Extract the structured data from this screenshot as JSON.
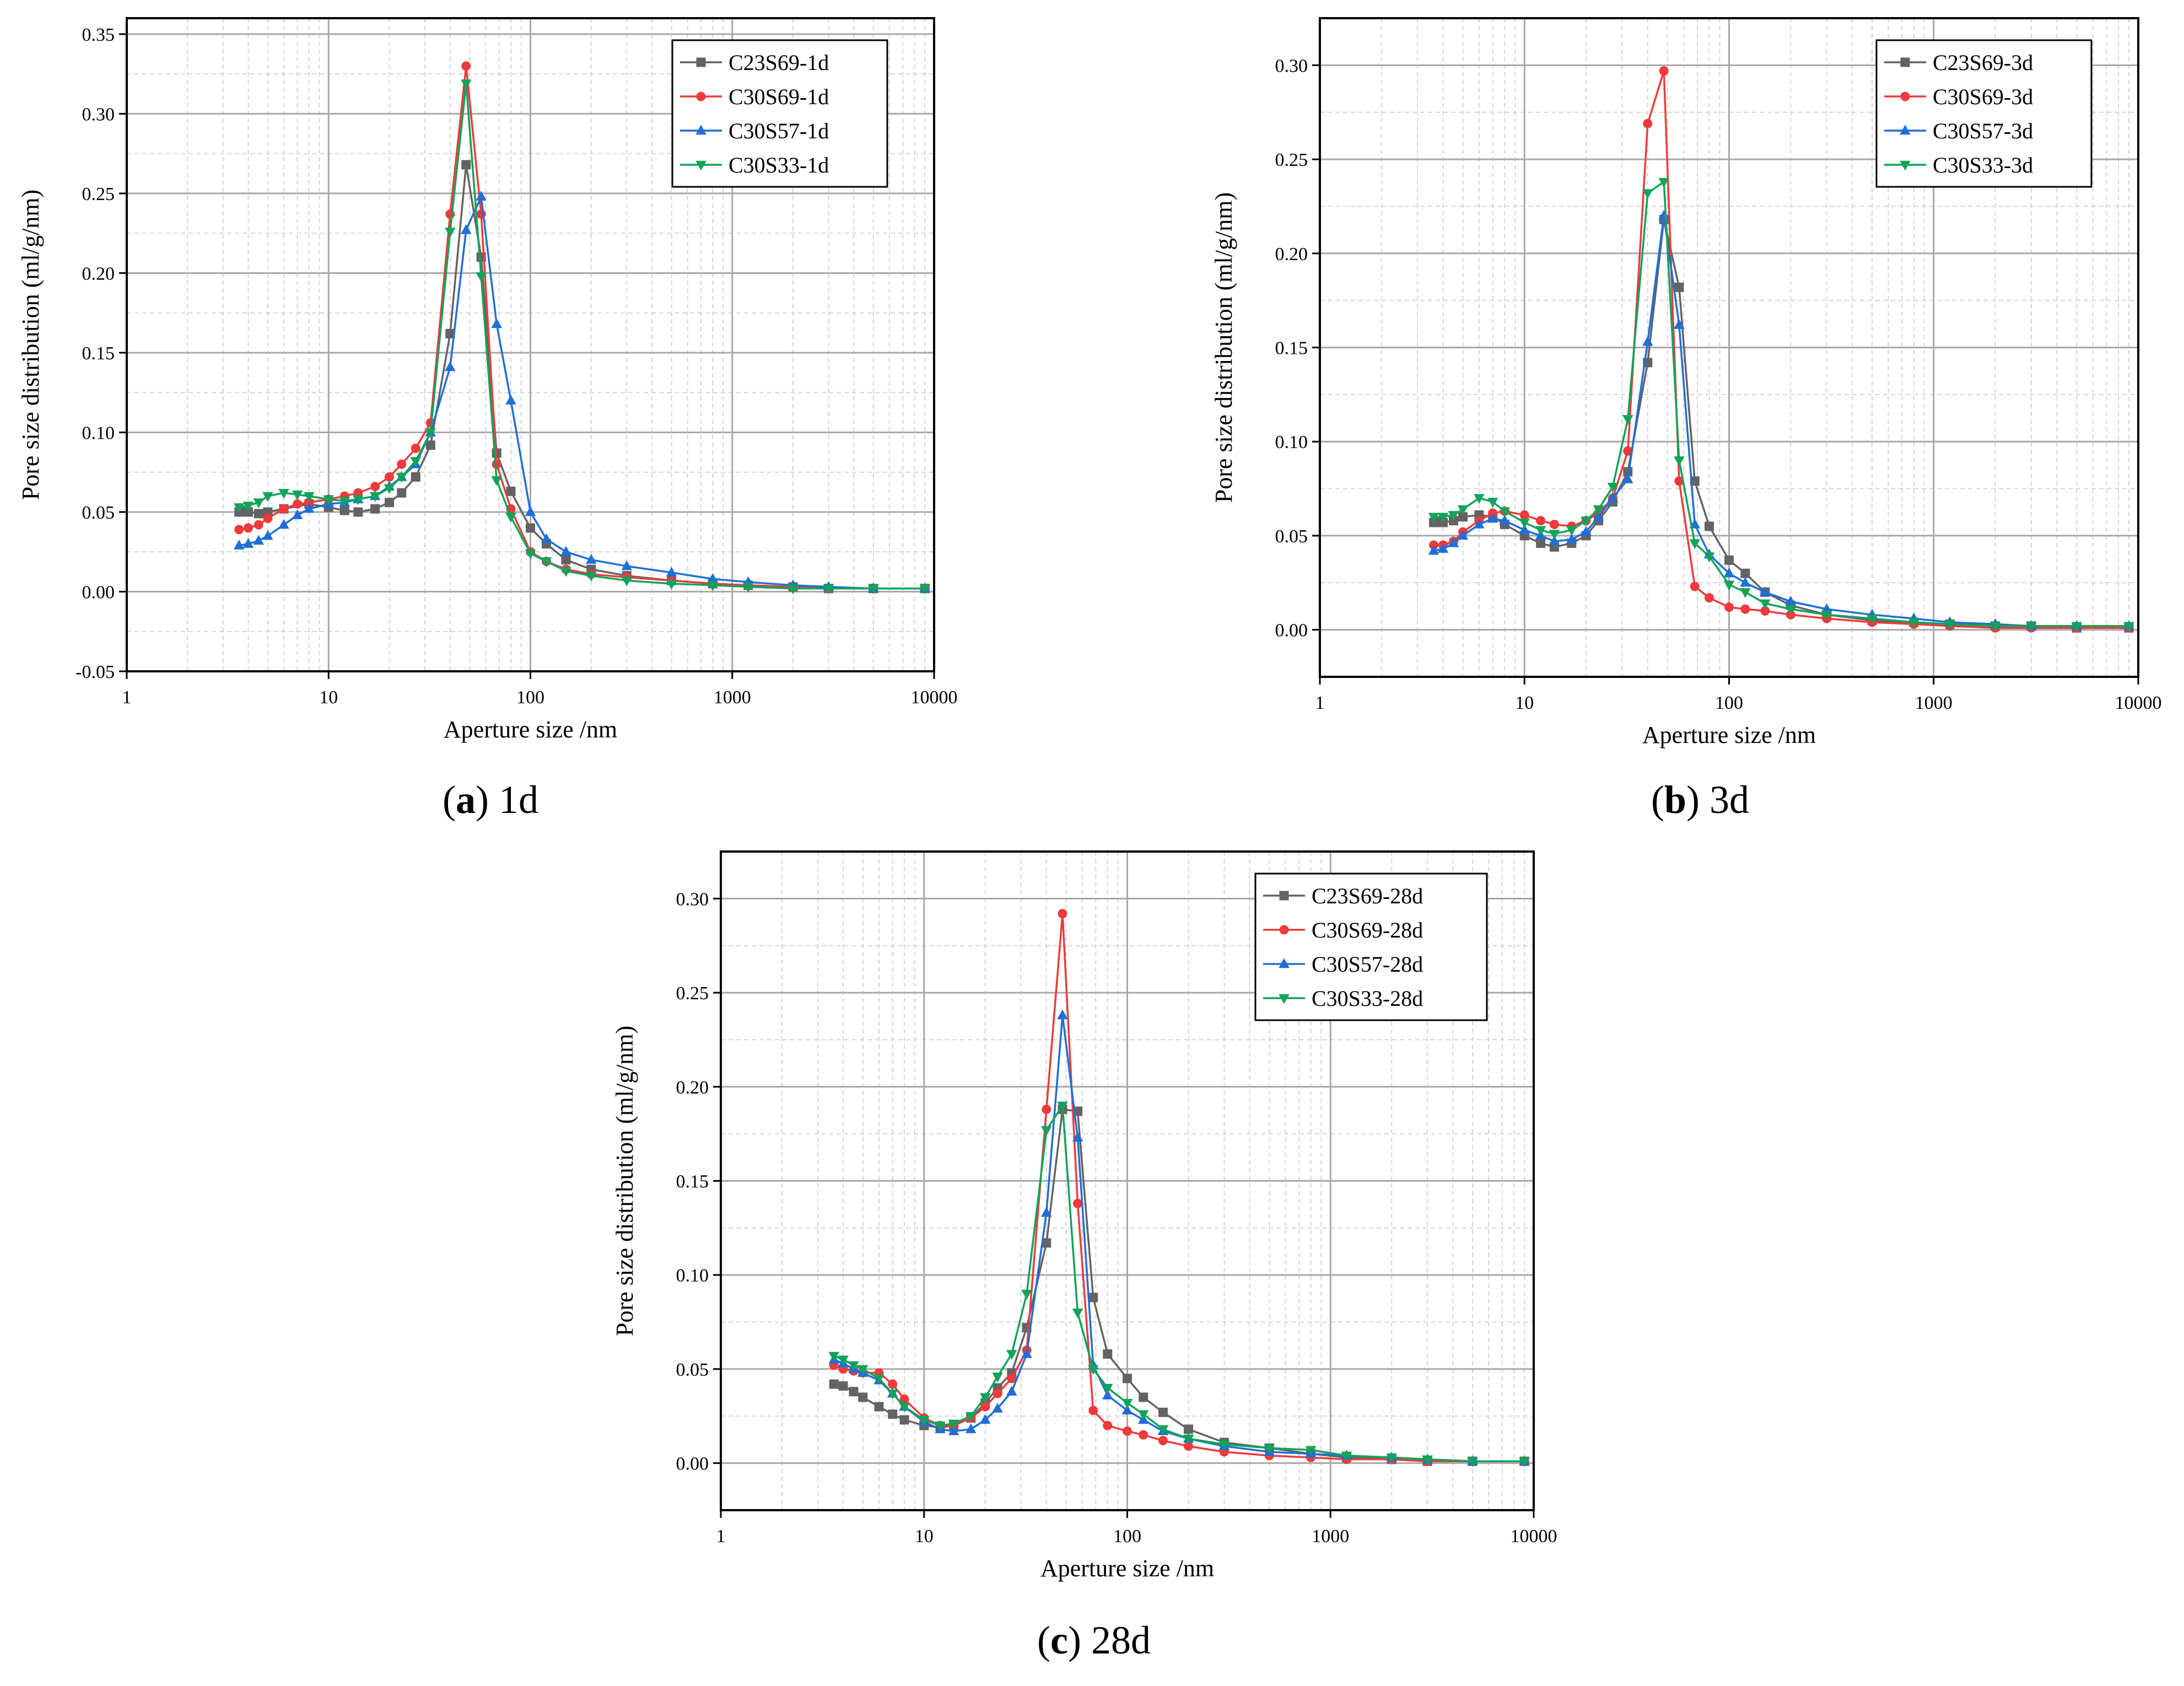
{
  "colors": {
    "C23S69": "#636363",
    "C30S69": "#ee3a3a",
    "C30S57": "#1f6fd6",
    "C30S33": "#11a35a"
  },
  "chart_data": [
    {
      "id": "a",
      "type": "line",
      "title": "",
      "caption": {
        "letter": "a",
        "text": "1d"
      },
      "xlabel": "Aperture size /nm",
      "ylabel": "Pore size distribution (ml/g/nm)",
      "xscale": "log",
      "xlim": [
        1,
        10000
      ],
      "ylim": [
        -0.05,
        0.36
      ],
      "yticks": [
        -0.05,
        0.0,
        0.05,
        0.1,
        0.15,
        0.2,
        0.25,
        0.3,
        0.35
      ],
      "ytick_labels": [
        "-0.05",
        "0.00",
        "0.05",
        "0.10",
        "0.15",
        "0.20",
        "0.25",
        "0.30",
        "0.35"
      ],
      "xtick_labels": [
        "1",
        "10",
        "100",
        "1000",
        "10000"
      ],
      "legend_position": "top-right",
      "grid": true,
      "series": [
        {
          "name": "C23S69-1d",
          "key": "C23S69",
          "marker": "square",
          "x": [
            3.6,
            4,
            4.5,
            5,
            6,
            8,
            10,
            12,
            14,
            17,
            20,
            23,
            27,
            32,
            40,
            48,
            57,
            68,
            80,
            100,
            120,
            150,
            200,
            300,
            500,
            800,
            1200,
            2000,
            3000,
            5000,
            9000
          ],
          "y": [
            0.05,
            0.05,
            0.049,
            0.05,
            0.052,
            0.055,
            0.053,
            0.051,
            0.05,
            0.052,
            0.056,
            0.062,
            0.072,
            0.092,
            0.162,
            0.268,
            0.21,
            0.087,
            0.063,
            0.04,
            0.03,
            0.02,
            0.014,
            0.01,
            0.007,
            0.005,
            0.004,
            0.003,
            0.002,
            0.002,
            0.002
          ]
        },
        {
          "name": "C30S69-1d",
          "key": "C30S69",
          "marker": "circle",
          "x": [
            3.6,
            4,
            4.5,
            5,
            6,
            7,
            8,
            10,
            12,
            14,
            17,
            20,
            23,
            27,
            32,
            40,
            48,
            57,
            68,
            80,
            100,
            120,
            150,
            200,
            300,
            500,
            800,
            1200,
            2000,
            3000,
            5000,
            9000
          ],
          "y": [
            0.039,
            0.04,
            0.042,
            0.046,
            0.052,
            0.055,
            0.056,
            0.058,
            0.06,
            0.062,
            0.066,
            0.072,
            0.08,
            0.09,
            0.106,
            0.237,
            0.33,
            0.237,
            0.08,
            0.052,
            0.025,
            0.019,
            0.014,
            0.011,
            0.009,
            0.007,
            0.005,
            0.004,
            0.003,
            0.002,
            0.002,
            0.002
          ]
        },
        {
          "name": "C30S57-1d",
          "key": "C30S57",
          "marker": "triangle-up",
          "x": [
            3.6,
            4,
            4.5,
            5,
            6,
            7,
            8,
            10,
            12,
            14,
            17,
            20,
            23,
            27,
            32,
            40,
            48,
            57,
            68,
            80,
            100,
            120,
            150,
            200,
            300,
            500,
            800,
            1200,
            2000,
            3000,
            5000,
            9000
          ],
          "y": [
            0.029,
            0.03,
            0.032,
            0.035,
            0.042,
            0.048,
            0.052,
            0.055,
            0.056,
            0.058,
            0.06,
            0.066,
            0.072,
            0.08,
            0.1,
            0.141,
            0.227,
            0.248,
            0.168,
            0.12,
            0.05,
            0.033,
            0.025,
            0.02,
            0.016,
            0.012,
            0.008,
            0.006,
            0.004,
            0.003,
            0.002,
            0.002
          ]
        },
        {
          "name": "C30S33-1d",
          "key": "C30S33",
          "marker": "triangle-down",
          "x": [
            3.6,
            4,
            4.5,
            5,
            6,
            7,
            8,
            10,
            12,
            14,
            17,
            20,
            23,
            27,
            32,
            40,
            48,
            57,
            68,
            80,
            100,
            120,
            150,
            200,
            300,
            500,
            800,
            1200,
            2000,
            3000,
            5000,
            9000
          ],
          "y": [
            0.053,
            0.054,
            0.056,
            0.06,
            0.062,
            0.061,
            0.06,
            0.058,
            0.057,
            0.058,
            0.06,
            0.065,
            0.072,
            0.082,
            0.1,
            0.226,
            0.319,
            0.198,
            0.07,
            0.047,
            0.024,
            0.019,
            0.013,
            0.01,
            0.007,
            0.005,
            0.004,
            0.003,
            0.002,
            0.002,
            0.002,
            0.002
          ]
        }
      ]
    },
    {
      "id": "b",
      "type": "line",
      "title": "",
      "caption": {
        "letter": "b",
        "text": "3d"
      },
      "xlabel": "Aperture size /nm",
      "ylabel": "Pore size distribution (ml/g/nm)",
      "xscale": "log",
      "xlim": [
        1,
        10000
      ],
      "ylim": [
        -0.025,
        0.325
      ],
      "yticks": [
        0.0,
        0.05,
        0.1,
        0.15,
        0.2,
        0.25,
        0.3
      ],
      "ytick_labels": [
        "0.00",
        "0.05",
        "0.10",
        "0.15",
        "0.20",
        "0.25",
        "0.30"
      ],
      "xtick_labels": [
        "1",
        "10",
        "100",
        "1000",
        "10000"
      ],
      "legend_position": "top-right",
      "grid": true,
      "series": [
        {
          "name": "C23S69-3d",
          "key": "C23S69",
          "marker": "square",
          "x": [
            3.6,
            4,
            4.5,
            5,
            6,
            7,
            8,
            10,
            12,
            14,
            17,
            20,
            23,
            27,
            32,
            40,
            48,
            57,
            68,
            80,
            100,
            120,
            150,
            200,
            300,
            500,
            800,
            1200,
            2000,
            3000,
            5000,
            9000
          ],
          "y": [
            0.057,
            0.057,
            0.058,
            0.06,
            0.061,
            0.06,
            0.056,
            0.05,
            0.046,
            0.044,
            0.046,
            0.05,
            0.058,
            0.068,
            0.084,
            0.142,
            0.218,
            0.182,
            0.079,
            0.055,
            0.037,
            0.03,
            0.02,
            0.013,
            0.008,
            0.005,
            0.004,
            0.003,
            0.002,
            0.002,
            0.001,
            0.001
          ]
        },
        {
          "name": "C30S69-3d",
          "key": "C30S69",
          "marker": "circle",
          "x": [
            3.6,
            4,
            4.5,
            5,
            6,
            7,
            8,
            10,
            12,
            14,
            17,
            20,
            23,
            27,
            32,
            40,
            48,
            57,
            68,
            80,
            100,
            120,
            150,
            200,
            300,
            500,
            800,
            1200,
            2000,
            3000,
            5000,
            9000
          ],
          "y": [
            0.045,
            0.045,
            0.047,
            0.052,
            0.058,
            0.062,
            0.063,
            0.061,
            0.058,
            0.056,
            0.055,
            0.058,
            0.062,
            0.07,
            0.095,
            0.269,
            0.297,
            0.079,
            0.023,
            0.017,
            0.012,
            0.011,
            0.01,
            0.008,
            0.006,
            0.004,
            0.003,
            0.002,
            0.001,
            0.001,
            0.001,
            0.001
          ]
        },
        {
          "name": "C30S57-3d",
          "key": "C30S57",
          "marker": "triangle-up",
          "x": [
            3.6,
            4,
            4.5,
            5,
            6,
            7,
            8,
            10,
            12,
            14,
            17,
            20,
            23,
            27,
            32,
            40,
            48,
            57,
            68,
            80,
            100,
            120,
            150,
            200,
            300,
            500,
            800,
            1200,
            2000,
            3000,
            5000,
            9000
          ],
          "y": [
            0.042,
            0.043,
            0.046,
            0.05,
            0.056,
            0.059,
            0.058,
            0.053,
            0.05,
            0.047,
            0.048,
            0.052,
            0.06,
            0.07,
            0.08,
            0.153,
            0.22,
            0.162,
            0.056,
            0.04,
            0.03,
            0.025,
            0.02,
            0.015,
            0.011,
            0.008,
            0.006,
            0.004,
            0.003,
            0.002,
            0.002,
            0.002
          ]
        },
        {
          "name": "C30S33-3d",
          "key": "C30S33",
          "marker": "triangle-down",
          "x": [
            3.6,
            4,
            4.5,
            5,
            6,
            7,
            8,
            10,
            12,
            14,
            17,
            20,
            23,
            27,
            32,
            40,
            48,
            57,
            68,
            80,
            100,
            120,
            150,
            200,
            300,
            500,
            800,
            1200,
            2000,
            3000,
            5000,
            9000
          ],
          "y": [
            0.06,
            0.06,
            0.061,
            0.064,
            0.07,
            0.068,
            0.063,
            0.057,
            0.053,
            0.051,
            0.053,
            0.058,
            0.064,
            0.076,
            0.112,
            0.232,
            0.238,
            0.09,
            0.046,
            0.039,
            0.024,
            0.02,
            0.014,
            0.011,
            0.008,
            0.006,
            0.004,
            0.003,
            0.002,
            0.002,
            0.002,
            0.002
          ]
        }
      ]
    },
    {
      "id": "c",
      "type": "line",
      "title": "",
      "caption": {
        "letter": "c",
        "text": "28d"
      },
      "xlabel": "Aperture size /nm",
      "ylabel": "Pore size distribution  (ml/g/nm)",
      "xscale": "log",
      "xlim": [
        1,
        10000
      ],
      "ylim": [
        -0.025,
        0.325
      ],
      "yticks": [
        0.0,
        0.05,
        0.1,
        0.15,
        0.2,
        0.25,
        0.3
      ],
      "ytick_labels": [
        "0.00",
        "0.05",
        "0.10",
        "0.15",
        "0.20",
        "0.25",
        "0.30"
      ],
      "xtick_labels": [
        "1",
        "10",
        "100",
        "1000",
        "10000"
      ],
      "legend_position": "top-right",
      "grid": true,
      "series": [
        {
          "name": "C23S69-28d",
          "key": "C23S69",
          "marker": "square",
          "x": [
            3.6,
            4,
            4.5,
            5,
            6,
            7,
            8,
            10,
            12,
            14,
            17,
            20,
            23,
            27,
            32,
            40,
            48,
            57,
            68,
            80,
            100,
            120,
            150,
            200,
            300,
            500,
            800,
            1200,
            2000,
            3000,
            5000,
            9000
          ],
          "y": [
            0.042,
            0.041,
            0.038,
            0.035,
            0.03,
            0.026,
            0.023,
            0.02,
            0.019,
            0.02,
            0.024,
            0.032,
            0.04,
            0.048,
            0.072,
            0.117,
            0.188,
            0.187,
            0.088,
            0.058,
            0.045,
            0.035,
            0.027,
            0.018,
            0.011,
            0.008,
            0.005,
            0.003,
            0.002,
            0.001,
            0.001,
            0.001
          ]
        },
        {
          "name": "C30S69-28d",
          "key": "C30S69",
          "marker": "circle",
          "x": [
            3.6,
            4,
            4.5,
            5,
            6,
            7,
            8,
            10,
            12,
            14,
            17,
            20,
            23,
            27,
            32,
            40,
            48,
            57,
            68,
            80,
            100,
            120,
            150,
            200,
            300,
            500,
            800,
            1200,
            2000,
            3000,
            5000,
            9000
          ],
          "y": [
            0.052,
            0.05,
            0.049,
            0.048,
            0.048,
            0.042,
            0.034,
            0.024,
            0.02,
            0.02,
            0.024,
            0.03,
            0.037,
            0.045,
            0.06,
            0.188,
            0.292,
            0.138,
            0.028,
            0.02,
            0.017,
            0.015,
            0.012,
            0.009,
            0.006,
            0.004,
            0.003,
            0.002,
            0.002,
            0.001,
            0.001,
            0.001
          ]
        },
        {
          "name": "C30S57-28d",
          "key": "C30S57",
          "marker": "triangle-up",
          "x": [
            3.6,
            4,
            4.5,
            5,
            6,
            7,
            8,
            10,
            12,
            14,
            17,
            20,
            23,
            27,
            32,
            40,
            48,
            57,
            68,
            80,
            100,
            120,
            150,
            200,
            300,
            500,
            800,
            1200,
            2000,
            3000,
            5000,
            9000
          ],
          "y": [
            0.055,
            0.053,
            0.05,
            0.048,
            0.044,
            0.037,
            0.03,
            0.022,
            0.018,
            0.017,
            0.018,
            0.023,
            0.029,
            0.038,
            0.058,
            0.133,
            0.238,
            0.173,
            0.052,
            0.036,
            0.028,
            0.023,
            0.017,
            0.013,
            0.009,
            0.006,
            0.005,
            0.004,
            0.003,
            0.002,
            0.001,
            0.001
          ]
        },
        {
          "name": "C30S33-28d",
          "key": "C30S33",
          "marker": "triangle-down",
          "x": [
            3.6,
            4,
            4.5,
            5,
            6,
            7,
            8,
            10,
            12,
            14,
            17,
            20,
            23,
            27,
            32,
            40,
            48,
            57,
            68,
            80,
            100,
            120,
            150,
            200,
            300,
            500,
            800,
            1200,
            2000,
            3000,
            5000,
            9000
          ],
          "y": [
            0.057,
            0.055,
            0.052,
            0.05,
            0.045,
            0.037,
            0.03,
            0.023,
            0.02,
            0.021,
            0.025,
            0.035,
            0.046,
            0.058,
            0.09,
            0.177,
            0.19,
            0.08,
            0.05,
            0.04,
            0.032,
            0.026,
            0.018,
            0.013,
            0.01,
            0.008,
            0.007,
            0.004,
            0.003,
            0.002,
            0.001,
            0.001
          ]
        }
      ]
    }
  ]
}
